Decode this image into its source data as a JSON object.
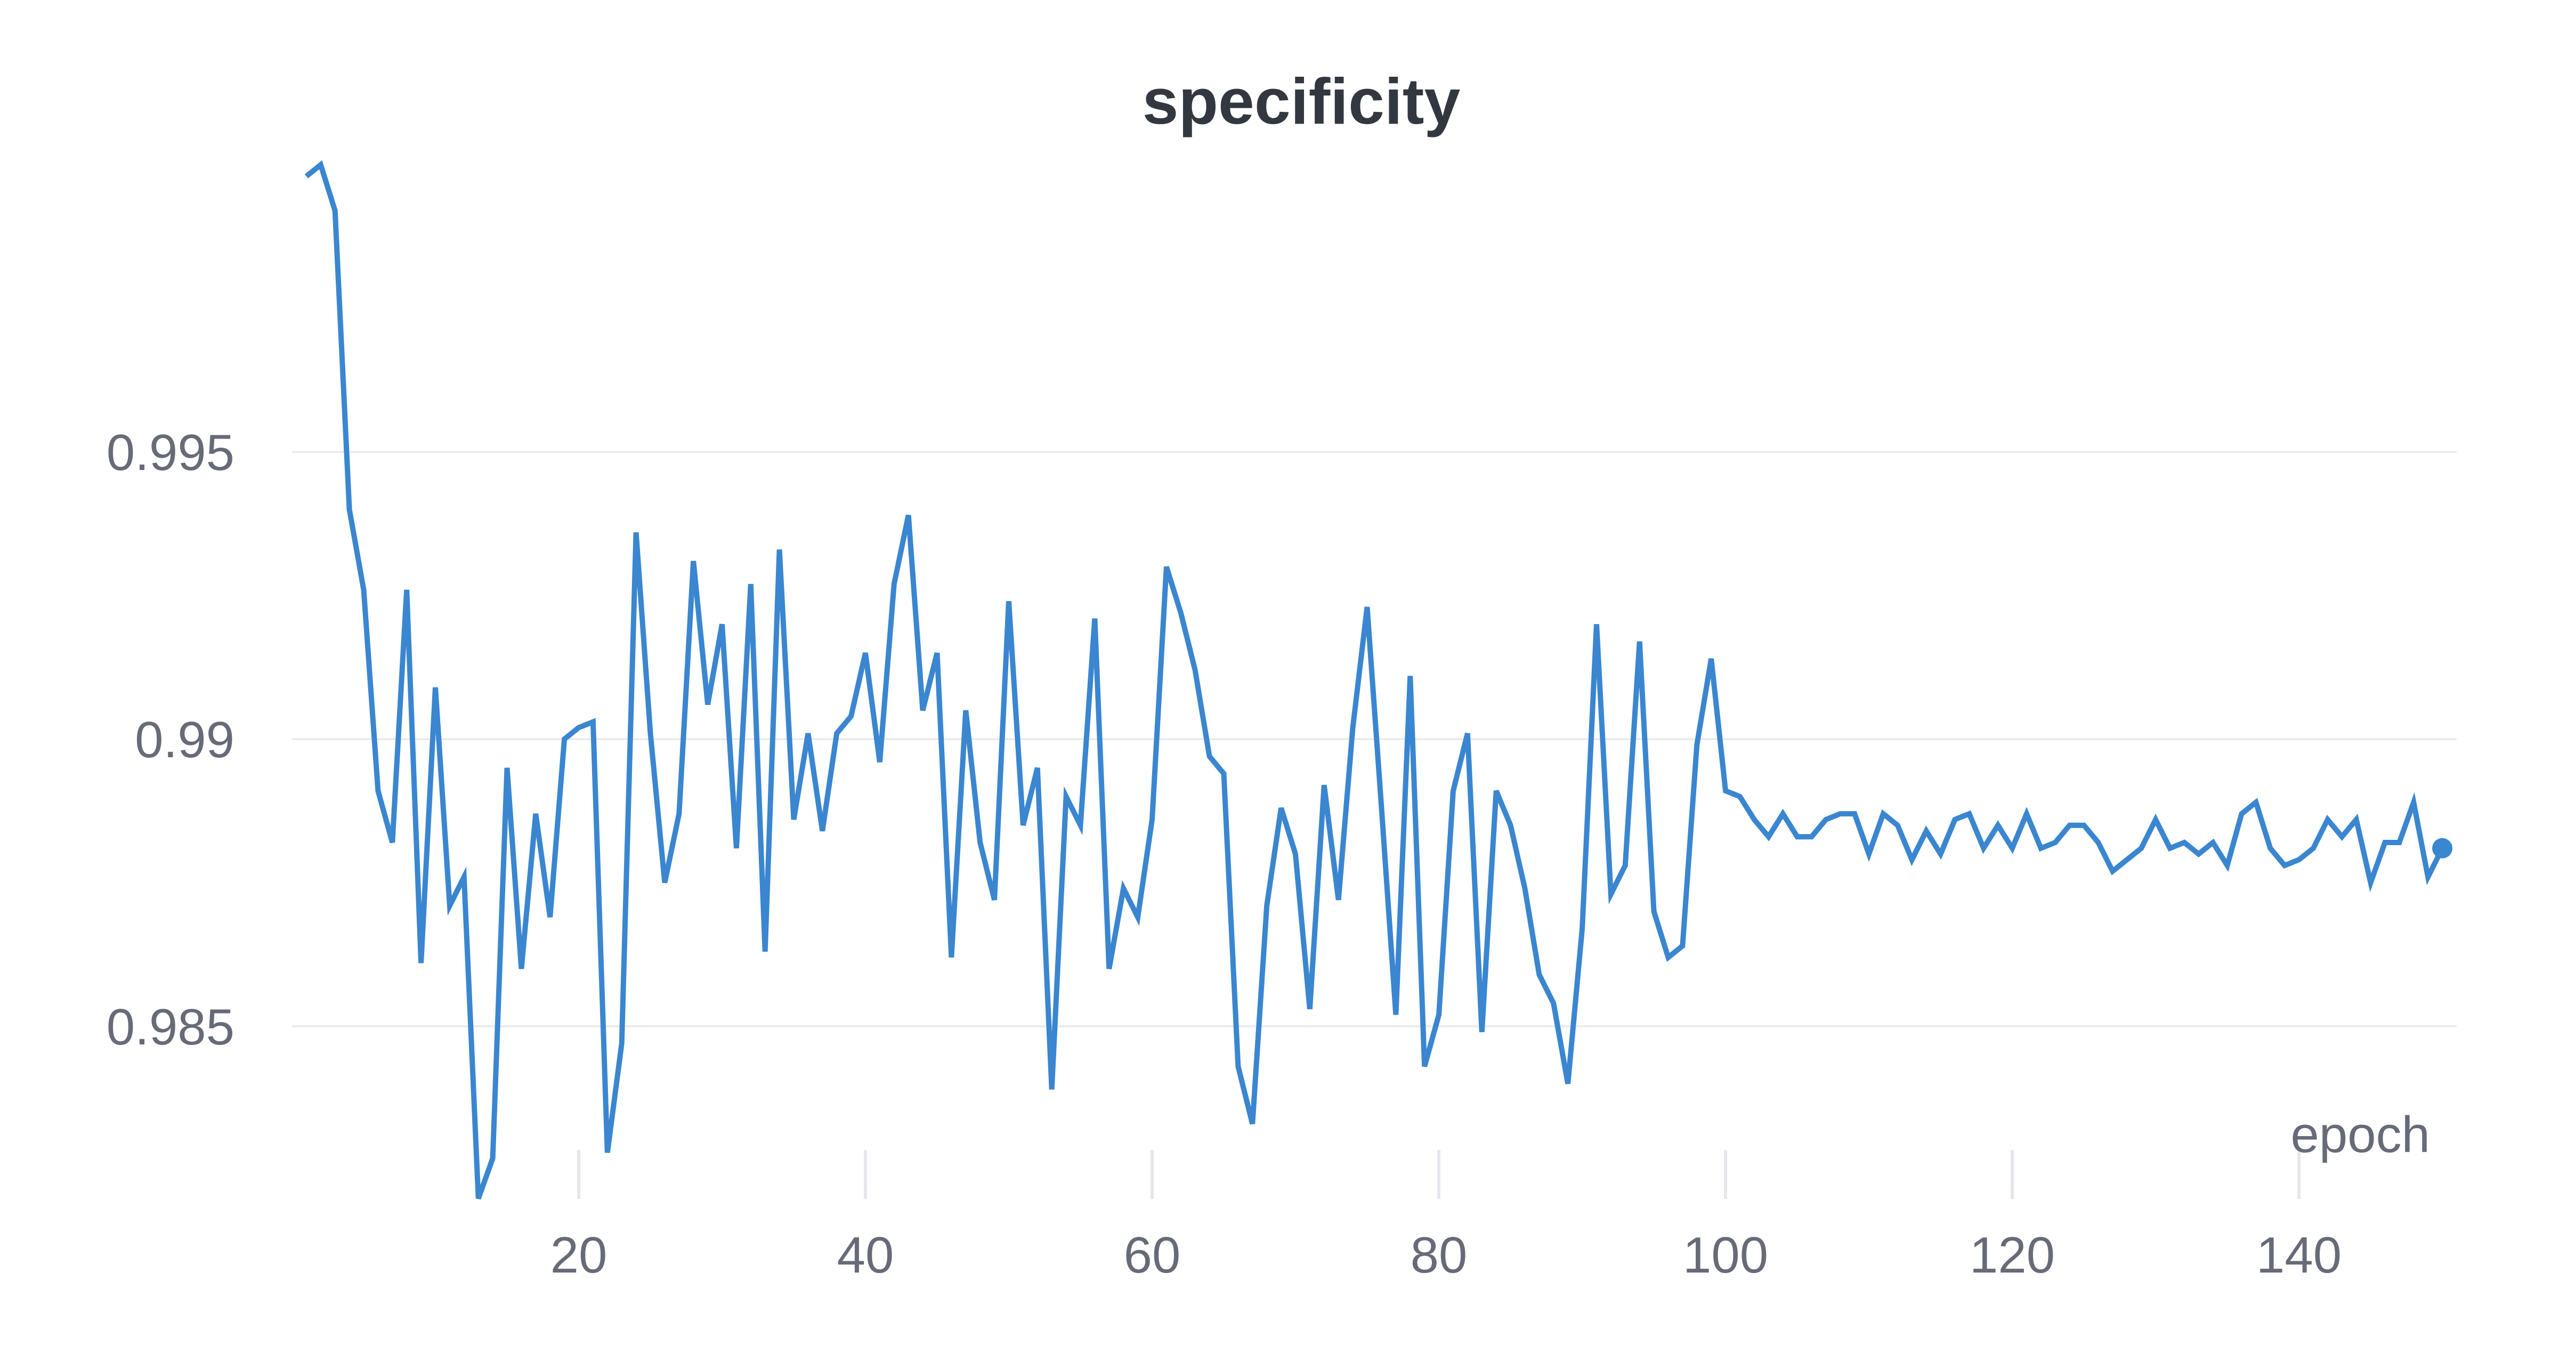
{
  "chart_data": {
    "type": "line",
    "title": "specificity",
    "xlabel": "epoch",
    "ylabel": "",
    "xlim": [
      0,
      151
    ],
    "ylim": [
      0.9819,
      0.9999
    ],
    "xticks": [
      20,
      40,
      60,
      80,
      100,
      120,
      140
    ],
    "xtick_labels": [
      "20",
      "40",
      "60",
      "80",
      "100",
      "120",
      "140"
    ],
    "yticks": [
      0.985,
      0.99,
      0.995
    ],
    "ytick_labels": [
      "0.985",
      "0.99",
      "0.995"
    ],
    "grid": "horizontal",
    "legend": "none",
    "series": [
      {
        "color": "#3a86d0",
        "x": [
          1,
          2,
          3,
          4,
          5,
          6,
          7,
          8,
          9,
          10,
          11,
          12,
          13,
          14,
          15,
          16,
          17,
          18,
          19,
          20,
          21,
          22,
          23,
          24,
          25,
          26,
          27,
          28,
          29,
          30,
          31,
          32,
          33,
          34,
          35,
          36,
          37,
          38,
          39,
          40,
          41,
          42,
          43,
          44,
          45,
          46,
          47,
          48,
          49,
          50,
          51,
          52,
          53,
          54,
          55,
          56,
          57,
          58,
          59,
          60,
          61,
          62,
          63,
          64,
          65,
          66,
          67,
          68,
          69,
          70,
          71,
          72,
          73,
          74,
          75,
          76,
          77,
          78,
          79,
          80,
          81,
          82,
          83,
          84,
          85,
          86,
          87,
          88,
          89,
          90,
          91,
          92,
          93,
          94,
          95,
          96,
          97,
          98,
          99,
          100,
          101,
          102,
          103,
          104,
          105,
          106,
          107,
          108,
          109,
          110,
          111,
          112,
          113,
          114,
          115,
          116,
          117,
          118,
          119,
          120,
          121,
          122,
          123,
          124,
          125,
          126,
          127,
          128,
          129,
          130,
          131,
          132,
          133,
          134,
          135,
          136,
          137,
          138,
          139,
          140,
          141,
          142,
          143,
          144,
          145,
          146,
          147,
          148,
          149,
          150
        ],
        "y": [
          0.9998,
          1.0,
          0.9992,
          0.994,
          0.9926,
          0.9891,
          0.9882,
          0.9926,
          0.9861,
          0.9909,
          0.9871,
          0.9876,
          0.982,
          0.9827,
          0.9895,
          0.986,
          0.9887,
          0.9869,
          0.99,
          0.9902,
          0.9903,
          0.9828,
          0.9847,
          0.9936,
          0.9901,
          0.9875,
          0.9887,
          0.9931,
          0.9906,
          0.992,
          0.9881,
          0.9927,
          0.9863,
          0.9933,
          0.9886,
          0.9901,
          0.9884,
          0.9901,
          0.9904,
          0.9915,
          0.9896,
          0.9927,
          0.9939,
          0.9905,
          0.9915,
          0.9862,
          0.9905,
          0.9882,
          0.9872,
          0.9924,
          0.9885,
          0.9895,
          0.9839,
          0.989,
          0.9885,
          0.9921,
          0.986,
          0.9874,
          0.9869,
          0.9886,
          0.993,
          0.9922,
          0.9912,
          0.9897,
          0.9894,
          0.9843,
          0.9833,
          0.9871,
          0.9888,
          0.988,
          0.9853,
          0.9892,
          0.9872,
          0.9902,
          0.9923,
          0.9888,
          0.9852,
          0.9911,
          0.9843,
          0.9852,
          0.9891,
          0.9901,
          0.9849,
          0.9891,
          0.9885,
          0.9874,
          0.9859,
          0.9854,
          0.984,
          0.9867,
          0.992,
          0.9873,
          0.9878,
          0.9917,
          0.987,
          0.9862,
          0.9864,
          0.9899,
          0.9914,
          0.9891,
          0.989,
          0.9886,
          0.9883,
          0.9887,
          0.9883,
          0.9883,
          0.9886,
          0.9887,
          0.9887,
          0.988,
          0.9887,
          0.9885,
          0.9879,
          0.9884,
          0.988,
          0.9886,
          0.9887,
          0.9881,
          0.9885,
          0.9881,
          0.9887,
          0.9881,
          0.9882,
          0.9885,
          0.9885,
          0.9882,
          0.9877,
          0.9879,
          0.9881,
          0.9886,
          0.9881,
          0.9882,
          0.988,
          0.9882,
          0.9878,
          0.9887,
          0.9889,
          0.9881,
          0.9878,
          0.9879,
          0.9881,
          0.9886,
          0.9883,
          0.9886,
          0.9875,
          0.9882,
          0.9882,
          0.9889,
          0.9876,
          0.9881
        ]
      }
    ]
  }
}
